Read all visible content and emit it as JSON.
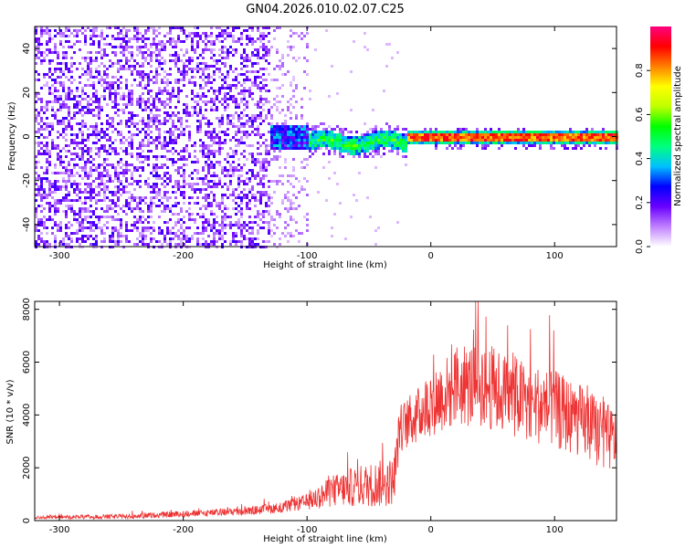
{
  "title": "GN04.2026.010.02.07.C25",
  "chart_data": [
    {
      "type": "heatmap",
      "xlabel": "Height of straight line (km)",
      "ylabel": "Frequency (Hz)",
      "xlim": [
        -320,
        150
      ],
      "ylim": [
        -50,
        50
      ],
      "xticks": [
        -300,
        -200,
        -100,
        0,
        100
      ],
      "xtick_labels": [
        "-300",
        "-200",
        "-100",
        "0",
        "100"
      ],
      "yticks": [
        -40,
        -20,
        0,
        20,
        40
      ],
      "ytick_labels": [
        "-40",
        "-20",
        "0",
        "20",
        "40"
      ],
      "colorbar": {
        "label": "Normalized spectral amplitude",
        "range": [
          0,
          1
        ],
        "ticks": [
          0.0,
          0.2,
          0.4,
          0.6,
          0.8
        ],
        "tick_labels": [
          "0.0",
          "0.2",
          "0.4",
          "0.6",
          "0.8"
        ],
        "colors": [
          "#ffffff",
          "#c080ff",
          "#6a00ff",
          "#0000ff",
          "#00c0ff",
          "#00ff80",
          "#00ff00",
          "#c0ff00",
          "#ffff00",
          "#ff8000",
          "#ff0000",
          "#ff0080"
        ]
      },
      "regions": [
        {
          "x": [
            -320,
            -130
          ],
          "freq": [
            -50,
            50
          ],
          "level": 0.15,
          "description_free": true
        },
        {
          "x": [
            -130,
            -100
          ],
          "freq": [
            -50,
            50
          ],
          "level": 0.08
        },
        {
          "x": [
            -130,
            -20
          ],
          "freq": [
            -5,
            5
          ],
          "level": 0.35
        },
        {
          "x": [
            -20,
            150
          ],
          "freq": [
            -2,
            2
          ],
          "level": 0.8
        }
      ]
    },
    {
      "type": "line",
      "xlabel": "Height of straight line (km)",
      "ylabel": "SNR (10 * v/v)",
      "xlim": [
        -320,
        150
      ],
      "ylim": [
        0,
        8300
      ],
      "xticks": [
        -300,
        -200,
        -100,
        0,
        100
      ],
      "xtick_labels": [
        "-300",
        "-200",
        "-100",
        "0",
        "100"
      ],
      "yticks": [
        0,
        2000,
        4000,
        6000,
        8000
      ],
      "ytick_labels": [
        "0",
        "2000",
        "4000",
        "6000",
        "8000"
      ],
      "color": "#ee3333",
      "envelope": {
        "x": [
          -320,
          -250,
          -200,
          -150,
          -120,
          -100,
          -80,
          -60,
          -40,
          -30,
          -25,
          -10,
          0,
          20,
          40,
          60,
          80,
          100,
          120,
          140,
          150
        ],
        "mean": [
          120,
          150,
          250,
          350,
          500,
          700,
          1100,
          1300,
          1400,
          1500,
          3500,
          4000,
          4500,
          5000,
          5200,
          4800,
          4500,
          4200,
          3800,
          3200,
          3000
        ],
        "amp": [
          100,
          150,
          200,
          250,
          350,
          500,
          1000,
          1300,
          1500,
          1500,
          1500,
          1800,
          2200,
          2500,
          2800,
          2600,
          2500,
          2500,
          2300,
          2200,
          2000
        ]
      }
    }
  ]
}
